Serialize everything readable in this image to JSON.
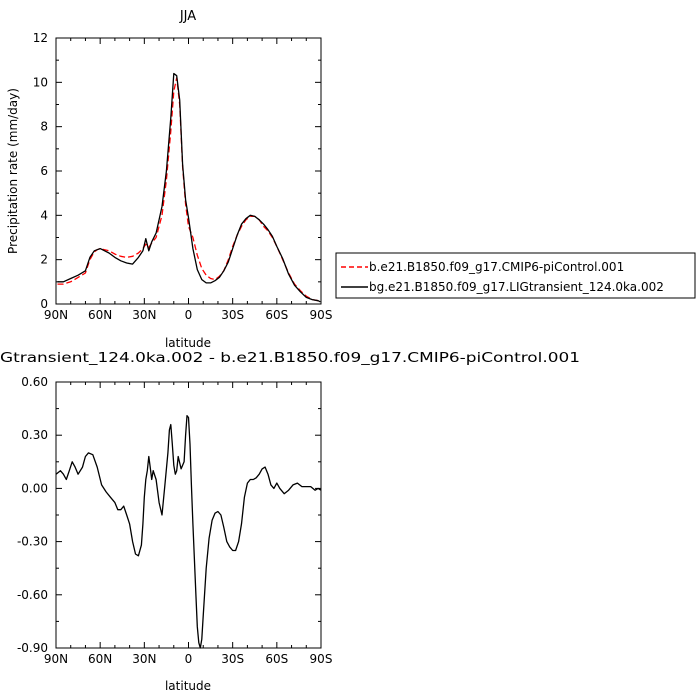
{
  "chart_data": [
    {
      "type": "line",
      "title": "JJA",
      "xlabel": "latitude",
      "ylabel": "Precipitation rate (mm/day)",
      "xlim": [
        90,
        -90
      ],
      "ylim": [
        0,
        12
      ],
      "x_ticks": [
        90,
        60,
        30,
        0,
        -30,
        -60,
        -90
      ],
      "x_tick_labels": [
        "90N",
        "60N",
        "30N",
        "0",
        "30S",
        "60S",
        "90S"
      ],
      "y_ticks": [
        0,
        2,
        4,
        6,
        8,
        10,
        12
      ],
      "y_tick_labels": [
        "0",
        "2",
        "4",
        "6",
        "8",
        "10",
        "12"
      ],
      "grid": false,
      "legend_position": "right",
      "series": [
        {
          "name": "b.e21.B1850.f09_g17.CMIP6-piControl.001",
          "color": "#ff0000",
          "dash": true,
          "x": [
            89,
            85,
            80,
            75,
            70,
            67,
            64,
            62,
            60,
            57,
            54,
            50,
            46,
            42,
            38,
            34,
            31,
            29,
            27,
            25,
            22,
            18,
            15,
            12,
            10,
            8,
            6,
            4,
            2,
            0,
            -3,
            -6,
            -9,
            -12,
            -15,
            -18,
            -21,
            -24,
            -27,
            -30,
            -33,
            -36,
            -39,
            -42,
            -45,
            -48,
            -51,
            -54,
            -57,
            -60,
            -64,
            -68,
            -72,
            -76,
            -80,
            -84,
            -88,
            -89.5
          ],
          "y": [
            0.9,
            0.9,
            1.0,
            1.2,
            1.4,
            2.0,
            2.35,
            2.45,
            2.5,
            2.45,
            2.4,
            2.25,
            2.15,
            2.1,
            2.15,
            2.3,
            2.5,
            2.7,
            2.55,
            2.75,
            3.0,
            4.0,
            5.6,
            7.8,
            9.6,
            10.2,
            9.0,
            6.2,
            4.5,
            3.5,
            3.0,
            2.2,
            1.6,
            1.3,
            1.15,
            1.1,
            1.25,
            1.5,
            2.0,
            2.6,
            3.1,
            3.5,
            3.8,
            3.95,
            3.95,
            3.8,
            3.5,
            3.3,
            3.0,
            2.6,
            2.0,
            1.4,
            0.9,
            0.6,
            0.35,
            0.2,
            0.15,
            0.1
          ]
        },
        {
          "name": "bg.e21.B1850.f09_g17.LIGtransient_124.0ka.002",
          "color": "#000000",
          "dash": false,
          "x": [
            89,
            85,
            80,
            75,
            70,
            67,
            64,
            62,
            60,
            57,
            54,
            50,
            46,
            42,
            38,
            34,
            31,
            29,
            27,
            25,
            22,
            18,
            15,
            12,
            10,
            8,
            6,
            4,
            2,
            0,
            -3,
            -6,
            -9,
            -12,
            -15,
            -18,
            -21,
            -24,
            -27,
            -30,
            -33,
            -36,
            -39,
            -42,
            -45,
            -48,
            -51,
            -54,
            -57,
            -60,
            -64,
            -68,
            -72,
            -76,
            -80,
            -84,
            -88,
            -89.5
          ],
          "y": [
            1.0,
            1.0,
            1.15,
            1.3,
            1.5,
            2.1,
            2.4,
            2.45,
            2.5,
            2.4,
            2.3,
            2.1,
            1.95,
            1.85,
            1.8,
            2.1,
            2.4,
            2.95,
            2.4,
            2.8,
            3.2,
            4.4,
            6.0,
            8.4,
            10.4,
            10.3,
            9.2,
            6.3,
            4.7,
            3.9,
            2.5,
            1.55,
            1.1,
            0.95,
            0.95,
            1.05,
            1.2,
            1.5,
            1.9,
            2.5,
            3.1,
            3.6,
            3.85,
            4.0,
            3.95,
            3.8,
            3.6,
            3.35,
            3.05,
            2.6,
            2.05,
            1.35,
            0.85,
            0.55,
            0.3,
            0.2,
            0.15,
            0.1
          ]
        }
      ]
    },
    {
      "type": "line",
      "title": "Gtransient_124.0ka.002 - b.e21.B1850.f09_g17.CMIP6-piControl.001",
      "xlabel": "latitude",
      "ylabel": "",
      "xlim": [
        90,
        -90
      ],
      "ylim": [
        -0.9,
        0.6
      ],
      "x_ticks": [
        90,
        60,
        30,
        0,
        -30,
        -60,
        -90
      ],
      "x_tick_labels": [
        "90N",
        "60N",
        "30N",
        "0",
        "30S",
        "60S",
        "90S"
      ],
      "y_ticks": [
        0.6,
        0.3,
        0,
        -0.3,
        -0.6,
        -0.9
      ],
      "y_tick_labels": [
        "0.60",
        "0.30",
        "0.00",
        "-0.30",
        "-0.60",
        "-0.90"
      ],
      "grid": false,
      "series": [
        {
          "color": "#000000",
          "x": [
            90,
            87,
            85,
            83,
            81,
            79,
            77,
            75,
            72,
            70,
            68,
            65,
            62,
            59,
            56,
            53,
            50,
            48,
            46,
            44,
            42,
            40,
            38,
            36,
            34,
            32,
            31,
            30,
            29,
            28,
            27,
            26,
            25,
            24,
            22,
            20,
            18,
            16,
            14,
            13,
            12,
            11,
            10,
            9,
            8,
            7,
            5,
            3,
            2,
            1,
            0,
            -1,
            -2,
            -3,
            -4,
            -5,
            -6,
            -7,
            -8,
            -9,
            -10,
            -12,
            -14,
            -16,
            -18,
            -20,
            -22,
            -24,
            -26,
            -28,
            -30,
            -32,
            -34,
            -36,
            -38,
            -40,
            -42,
            -44,
            -46,
            -48,
            -50,
            -52,
            -54,
            -56,
            -58,
            -60,
            -62,
            -65,
            -68,
            -71,
            -74,
            -77,
            -80,
            -83,
            -86,
            -88,
            -90
          ],
          "y": [
            0.08,
            0.1,
            0.08,
            0.05,
            0.1,
            0.15,
            0.12,
            0.08,
            0.12,
            0.18,
            0.2,
            0.19,
            0.12,
            0.02,
            -0.02,
            -0.05,
            -0.08,
            -0.12,
            -0.12,
            -0.1,
            -0.15,
            -0.2,
            -0.3,
            -0.37,
            -0.38,
            -0.32,
            -0.2,
            -0.05,
            0.05,
            0.1,
            0.18,
            0.12,
            0.05,
            0.1,
            0.05,
            -0.08,
            -0.15,
            0.02,
            0.2,
            0.33,
            0.36,
            0.25,
            0.13,
            0.08,
            0.1,
            0.18,
            0.11,
            0.15,
            0.3,
            0.41,
            0.4,
            0.25,
            0.02,
            -0.2,
            -0.4,
            -0.6,
            -0.78,
            -0.87,
            -0.9,
            -0.85,
            -0.72,
            -0.45,
            -0.28,
            -0.18,
            -0.14,
            -0.13,
            -0.15,
            -0.22,
            -0.3,
            -0.33,
            -0.35,
            -0.35,
            -0.3,
            -0.2,
            -0.05,
            0.03,
            0.05,
            0.05,
            0.06,
            0.08,
            0.11,
            0.12,
            0.08,
            0.02,
            0.0,
            0.03,
            0.0,
            -0.03,
            -0.01,
            0.02,
            0.03,
            0.01,
            0.01,
            0.01,
            -0.01,
            0.0,
            -0.01
          ]
        }
      ]
    }
  ]
}
